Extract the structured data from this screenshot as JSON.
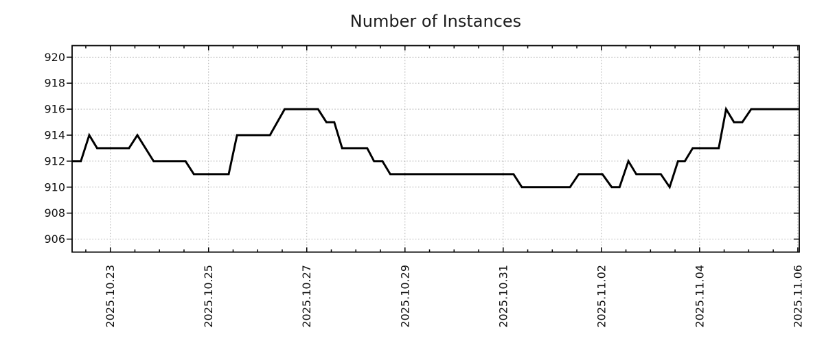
{
  "page": {
    "background": "#ffffff"
  },
  "chart_data": {
    "type": "line",
    "title": "Number of Instances",
    "xlabel": "",
    "ylabel": "",
    "legend": "none",
    "grid": "dotted-major-both-axes",
    "colors": {
      "grid": "#b0b0b0",
      "frame": "#000000",
      "text": "#111111",
      "series": "#000000"
    },
    "x_axis": {
      "kind": "time",
      "unit": "days since 2025-10-22 00:00",
      "range": [
        0.221,
        15.03
      ],
      "minor_tick_step": 0.5,
      "major_ticks": [
        {
          "t": 1,
          "label": "2025.10.23"
        },
        {
          "t": 3,
          "label": "2025.10.25"
        },
        {
          "t": 5,
          "label": "2025.10.27"
        },
        {
          "t": 7,
          "label": "2025.10.29"
        },
        {
          "t": 9,
          "label": "2025.10.31"
        },
        {
          "t": 11,
          "label": "2025.11.02"
        },
        {
          "t": 13,
          "label": "2025.11.04"
        },
        {
          "t": 15,
          "label": "2025.11.06"
        }
      ]
    },
    "y_axis": {
      "range": [
        905.0,
        920.89
      ],
      "ticks": [
        920,
        918,
        916,
        914,
        912,
        910,
        908,
        906
      ]
    },
    "series": [
      {
        "name": "instances",
        "color": "#000000",
        "width": 3,
        "points": [
          [
            0.221,
            912
          ],
          [
            0.4,
            912
          ],
          [
            0.57,
            914
          ],
          [
            0.73,
            913
          ],
          [
            1.38,
            913
          ],
          [
            1.55,
            914
          ],
          [
            1.88,
            912
          ],
          [
            2.53,
            912
          ],
          [
            2.7,
            911
          ],
          [
            3.41,
            911
          ],
          [
            3.58,
            914
          ],
          [
            4.25,
            914
          ],
          [
            4.55,
            916
          ],
          [
            5.23,
            916
          ],
          [
            5.4,
            915
          ],
          [
            5.56,
            915
          ],
          [
            5.72,
            913
          ],
          [
            6.23,
            913
          ],
          [
            6.37,
            912
          ],
          [
            6.54,
            912
          ],
          [
            6.7,
            911
          ],
          [
            9.21,
            911
          ],
          [
            9.38,
            910
          ],
          [
            10.36,
            910
          ],
          [
            10.54,
            911
          ],
          [
            11.02,
            911
          ],
          [
            11.21,
            910
          ],
          [
            11.37,
            910
          ],
          [
            11.55,
            912
          ],
          [
            11.71,
            911
          ],
          [
            12.21,
            911
          ],
          [
            12.39,
            910
          ],
          [
            12.56,
            912
          ],
          [
            12.7,
            912
          ],
          [
            12.86,
            913
          ],
          [
            13.39,
            913
          ],
          [
            13.54,
            916
          ],
          [
            13.7,
            915
          ],
          [
            13.87,
            915
          ],
          [
            14.05,
            916
          ],
          [
            15.03,
            916
          ]
        ]
      }
    ]
  }
}
